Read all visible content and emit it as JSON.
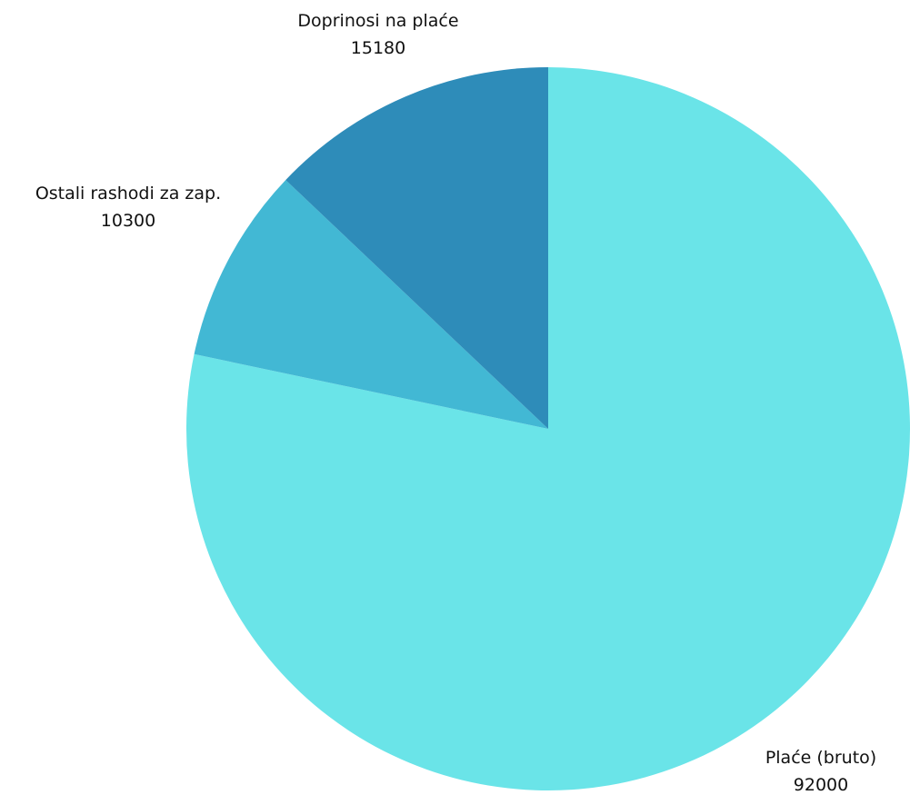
{
  "chart_data": {
    "type": "pie",
    "title": "",
    "start_angle_deg": 0,
    "direction": "clockwise",
    "slices": [
      {
        "label": "Plaće (bruto)",
        "value": 92000,
        "color": "#6ae4e8"
      },
      {
        "label": "Ostali rashodi za zap.",
        "value": 10300,
        "color": "#42b8d4"
      },
      {
        "label": "Doprinosi na plaće",
        "value": 15180,
        "color": "#2e8cb9"
      }
    ]
  }
}
